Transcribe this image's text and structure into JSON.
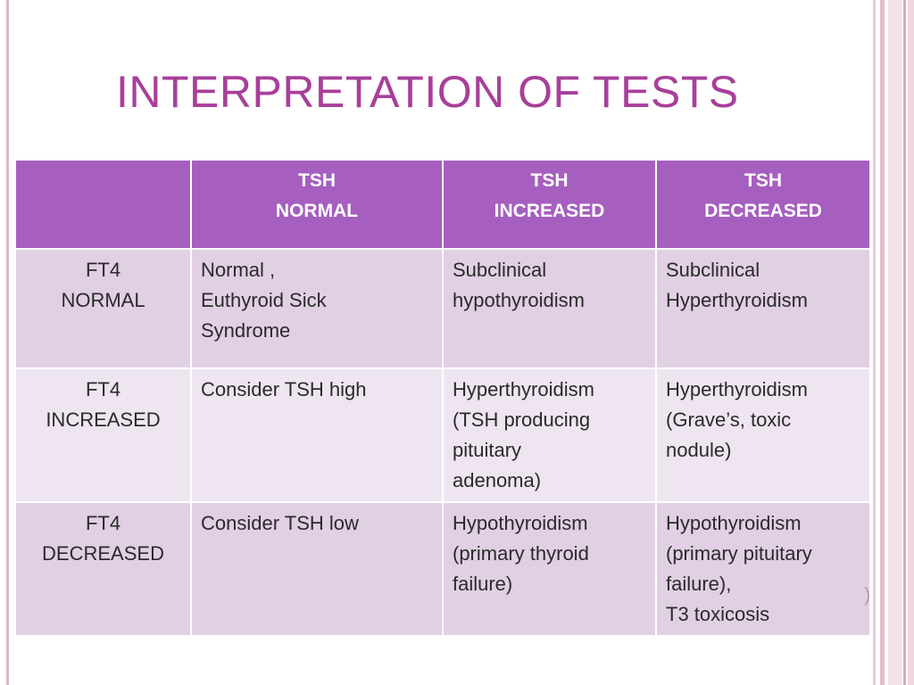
{
  "slide": {
    "title": "INTERPRETATION OF TESTS",
    "colors": {
      "title": "#a83f9a",
      "header_bg": "#a65fbf",
      "row_odd": "#e1cfe4",
      "row_even": "#efe5f1"
    }
  },
  "table": {
    "headers": [
      {
        "line1": "",
        "line2": ""
      },
      {
        "line1": "TSH",
        "line2": "NORMAL"
      },
      {
        "line1": "TSH",
        "line2": "INCREASED"
      },
      {
        "line1": "TSH",
        "line2": "DECREASED"
      }
    ],
    "rows": [
      {
        "label1": "FT4",
        "label2": "NORMAL",
        "cells": [
          "Normal ,\nEuthyroid Sick\nSyndrome",
          "Subclinical\nhypothyroidism",
          "Subclinical\nHyperthyroidism"
        ]
      },
      {
        "label1": "FT4",
        "label2": "INCREASED",
        "cells": [
          "Consider TSH high",
          "Hyperthyroidism\n(TSH producing\npituitary\nadenoma)",
          "Hyperthyroidism\n(Grave’s, toxic\nnodule)"
        ]
      },
      {
        "label1": "FT4",
        "label2": "DECREASED",
        "cells": [
          "Consider TSH  low",
          "Hypothyroidism\n(primary thyroid\nfailure)",
          "Hypothyroidism\n(primary pituitary\nfailure),\nT3 toxicosis"
        ]
      }
    ]
  }
}
